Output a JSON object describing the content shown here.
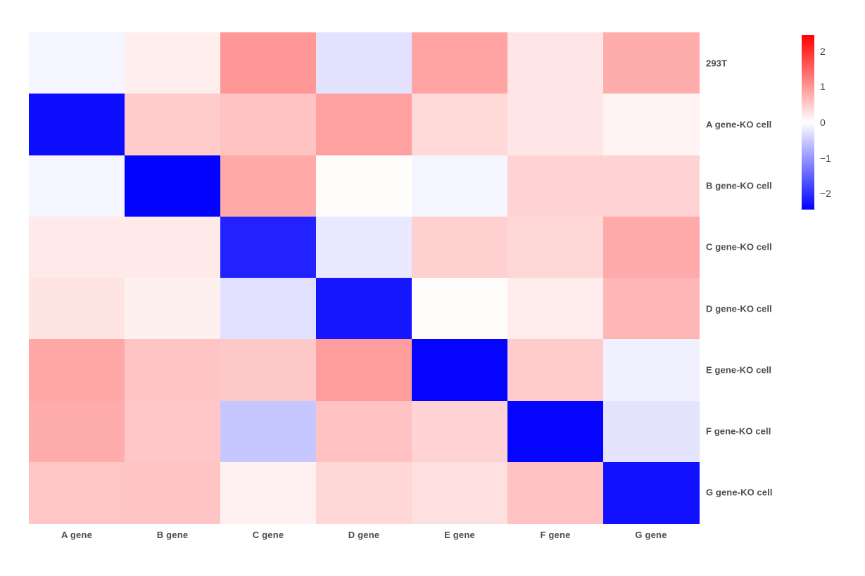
{
  "figure": {
    "background_color": "#ffffff",
    "label_text_color": "#4d4d4d",
    "tick_text_color": "#444444"
  },
  "chart_data": {
    "type": "heatmap",
    "title": "",
    "xlabel": "",
    "ylabel": "",
    "columns": [
      "A gene",
      "B gene",
      "C gene",
      "D gene",
      "E gene",
      "F gene",
      "G gene"
    ],
    "rows": [
      "293T",
      "A gene-KO cell",
      "B gene-KO cell",
      "C gene-KO cell",
      "D gene-KO cell",
      "E gene-KO cell",
      "F gene-KO cell",
      "G gene-KO cell"
    ],
    "matrix": [
      [
        -0.1,
        0.16,
        1.0,
        -0.28,
        0.88,
        0.25,
        0.8
      ],
      [
        -2.33,
        0.5,
        0.58,
        0.9,
        0.37,
        0.24,
        0.12
      ],
      [
        -0.1,
        -2.43,
        0.83,
        0.03,
        -0.1,
        0.42,
        0.42
      ],
      [
        0.2,
        0.2,
        -2.12,
        -0.21,
        0.45,
        0.38,
        0.82
      ],
      [
        0.26,
        0.14,
        -0.29,
        -2.23,
        0.03,
        0.18,
        0.7
      ],
      [
        0.85,
        0.56,
        0.53,
        0.94,
        -2.4,
        0.5,
        -0.14
      ],
      [
        0.8,
        0.54,
        -0.54,
        0.6,
        0.42,
        -2.41,
        -0.26
      ],
      [
        0.55,
        0.56,
        0.13,
        0.38,
        0.3,
        0.6,
        -2.29
      ]
    ],
    "vmin": -2.45,
    "vmax": 2.45,
    "grid": false,
    "legend_position": "right-colorbar",
    "colormap": {
      "name": "blue-white-red",
      "min_color": "#0000ff",
      "mid_color": "#ffffff",
      "max_color": "#ff0000"
    },
    "colorbar": {
      "tick_values": [
        2,
        1,
        0,
        -1,
        -2
      ],
      "tick_labels": [
        "2",
        "1",
        "0",
        "−1",
        "−2"
      ]
    }
  }
}
